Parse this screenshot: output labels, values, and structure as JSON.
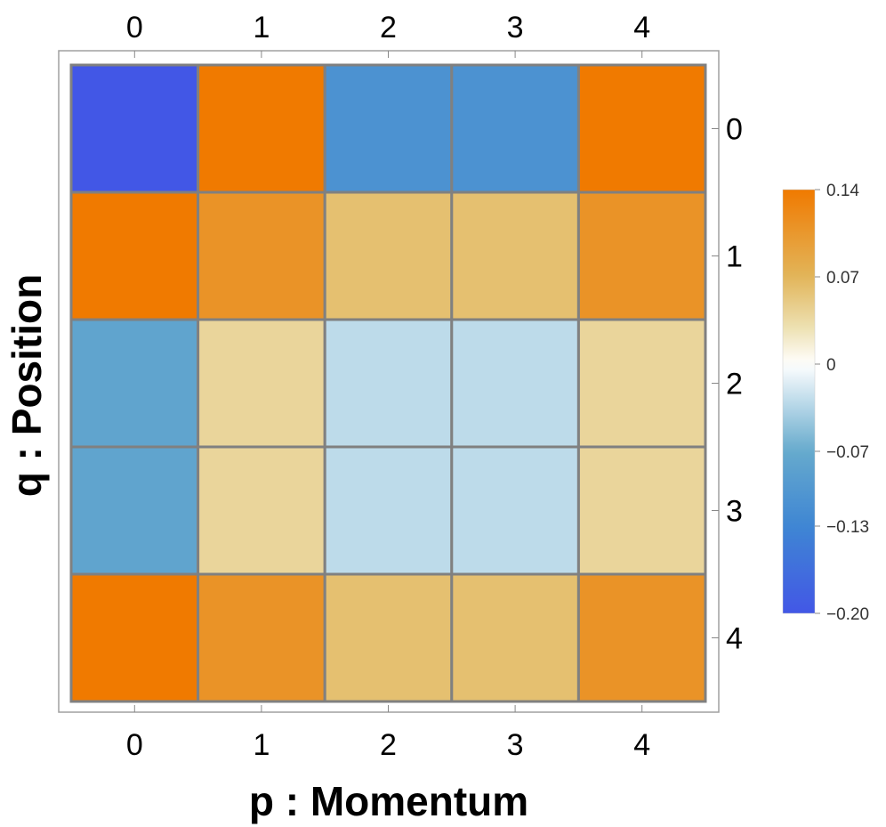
{
  "chart_data": {
    "type": "heatmap",
    "xlabel": "p : Momentum",
    "ylabel": "q : Position",
    "x_ticks": [
      "0",
      "1",
      "2",
      "3",
      "4"
    ],
    "y_ticks": [
      "0",
      "1",
      "2",
      "3",
      "4"
    ],
    "values": [
      [
        -0.2,
        0.14,
        -0.11,
        -0.11,
        0.14
      ],
      [
        0.14,
        0.11,
        0.06,
        0.06,
        0.11
      ],
      [
        -0.08,
        0.04,
        -0.03,
        -0.03,
        0.04
      ],
      [
        -0.08,
        0.04,
        -0.03,
        -0.03,
        0.04
      ],
      [
        0.14,
        0.11,
        0.06,
        0.06,
        0.11
      ]
    ],
    "colorbar": {
      "min": -0.2,
      "max": 0.14,
      "ticks": [
        "0.14",
        "0.07",
        "0",
        "−0.07",
        "−0.13",
        "−0.20"
      ],
      "tick_values": [
        0.14,
        0.07,
        0,
        -0.07,
        -0.13,
        -0.2
      ],
      "colors": {
        "min": "#4257e6",
        "neg_mid": "#3f86d3",
        "neg_light": "#66aacd",
        "zero": "#ffffff",
        "pos_light": "#ede0b0",
        "pos_mid": "#e2b55a",
        "max": "#f07a00"
      }
    },
    "grid_color": "#808080"
  }
}
